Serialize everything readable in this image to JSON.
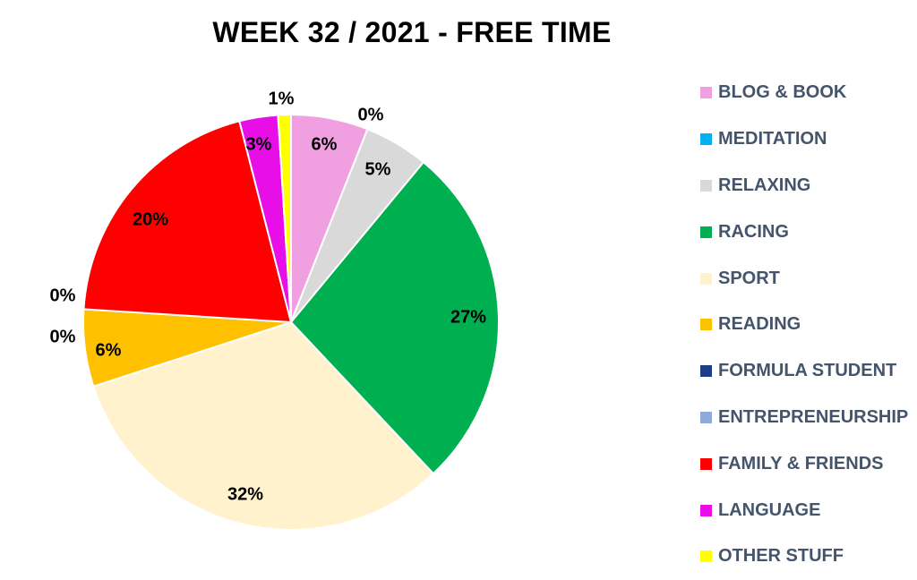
{
  "chart_data": {
    "type": "pie",
    "title": "WEEK 32 / 2021 - FREE TIME",
    "legend_position": "right",
    "categories": [
      "BLOG & BOOK",
      "MEDITATION",
      "RELAXING",
      "RACING",
      "SPORT",
      "READING",
      "FORMULA STUDENT",
      "ENTREPRENEURSHIP",
      "FAMILY & FRIENDS",
      "LANGUAGE",
      "OTHER STUFF"
    ],
    "values": [
      6,
      0,
      5,
      27,
      32,
      6,
      0,
      0,
      20,
      3,
      1
    ],
    "value_labels": [
      "6%",
      "0%",
      "5%",
      "27%",
      "32%",
      "6%",
      "0%",
      "0%",
      "20%",
      "3%",
      "1%"
    ],
    "colors": [
      "#f0a0e0",
      "#00b0f0",
      "#d9d9d9",
      "#00b050",
      "#fff2cc",
      "#ffc000",
      "#1f3c88",
      "#8eaadb",
      "#ff0000",
      "#e80ee8",
      "#ffff00"
    ]
  }
}
